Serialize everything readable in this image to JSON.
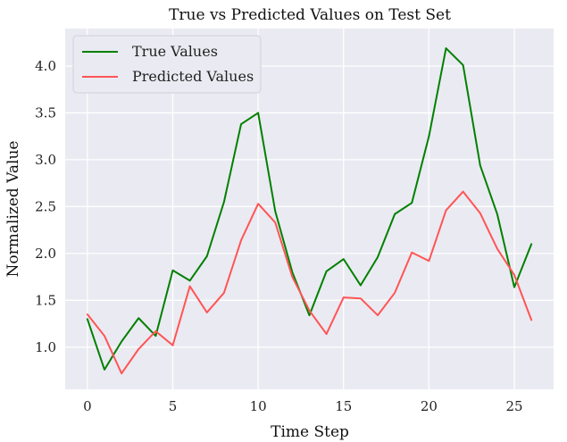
{
  "chart_data": {
    "type": "line",
    "title": "True vs Predicted Values on Test Set",
    "xlabel": "Time Step",
    "ylabel": "Normalized Value",
    "xlim": [
      -1.3,
      27.3
    ],
    "ylim": [
      0.55,
      4.4
    ],
    "xticks": [
      0,
      5,
      10,
      15,
      20,
      25
    ],
    "xtick_labels": [
      "0",
      "5",
      "10",
      "15",
      "20",
      "25"
    ],
    "yticks": [
      1.0,
      1.5,
      2.0,
      2.5,
      3.0,
      3.5,
      4.0
    ],
    "ytick_labels": [
      "1.0",
      "1.5",
      "2.0",
      "2.5",
      "3.0",
      "3.5",
      "4.0"
    ],
    "grid": true,
    "legend_position": "top-left",
    "x": [
      0,
      1,
      2,
      3,
      4,
      5,
      6,
      7,
      8,
      9,
      10,
      11,
      12,
      13,
      14,
      15,
      16,
      17,
      18,
      19,
      20,
      21,
      22,
      23,
      24,
      25,
      26
    ],
    "series": [
      {
        "name": "True Values",
        "color": "#008000",
        "values": [
          1.3,
          0.76,
          1.06,
          1.31,
          1.12,
          1.82,
          1.71,
          1.97,
          2.55,
          3.38,
          3.5,
          2.45,
          1.8,
          1.34,
          1.81,
          1.94,
          1.66,
          1.96,
          2.42,
          2.54,
          3.25,
          4.19,
          4.01,
          2.94,
          2.42,
          1.64,
          2.1
        ]
      },
      {
        "name": "Predicted Values",
        "color": "#ff5555",
        "values": [
          1.35,
          1.12,
          0.72,
          0.98,
          1.17,
          1.02,
          1.65,
          1.37,
          1.58,
          2.14,
          2.53,
          2.33,
          1.75,
          1.39,
          1.14,
          1.53,
          1.52,
          1.34,
          1.58,
          2.01,
          1.92,
          2.46,
          2.66,
          2.43,
          2.05,
          1.77,
          1.29
        ]
      }
    ]
  }
}
